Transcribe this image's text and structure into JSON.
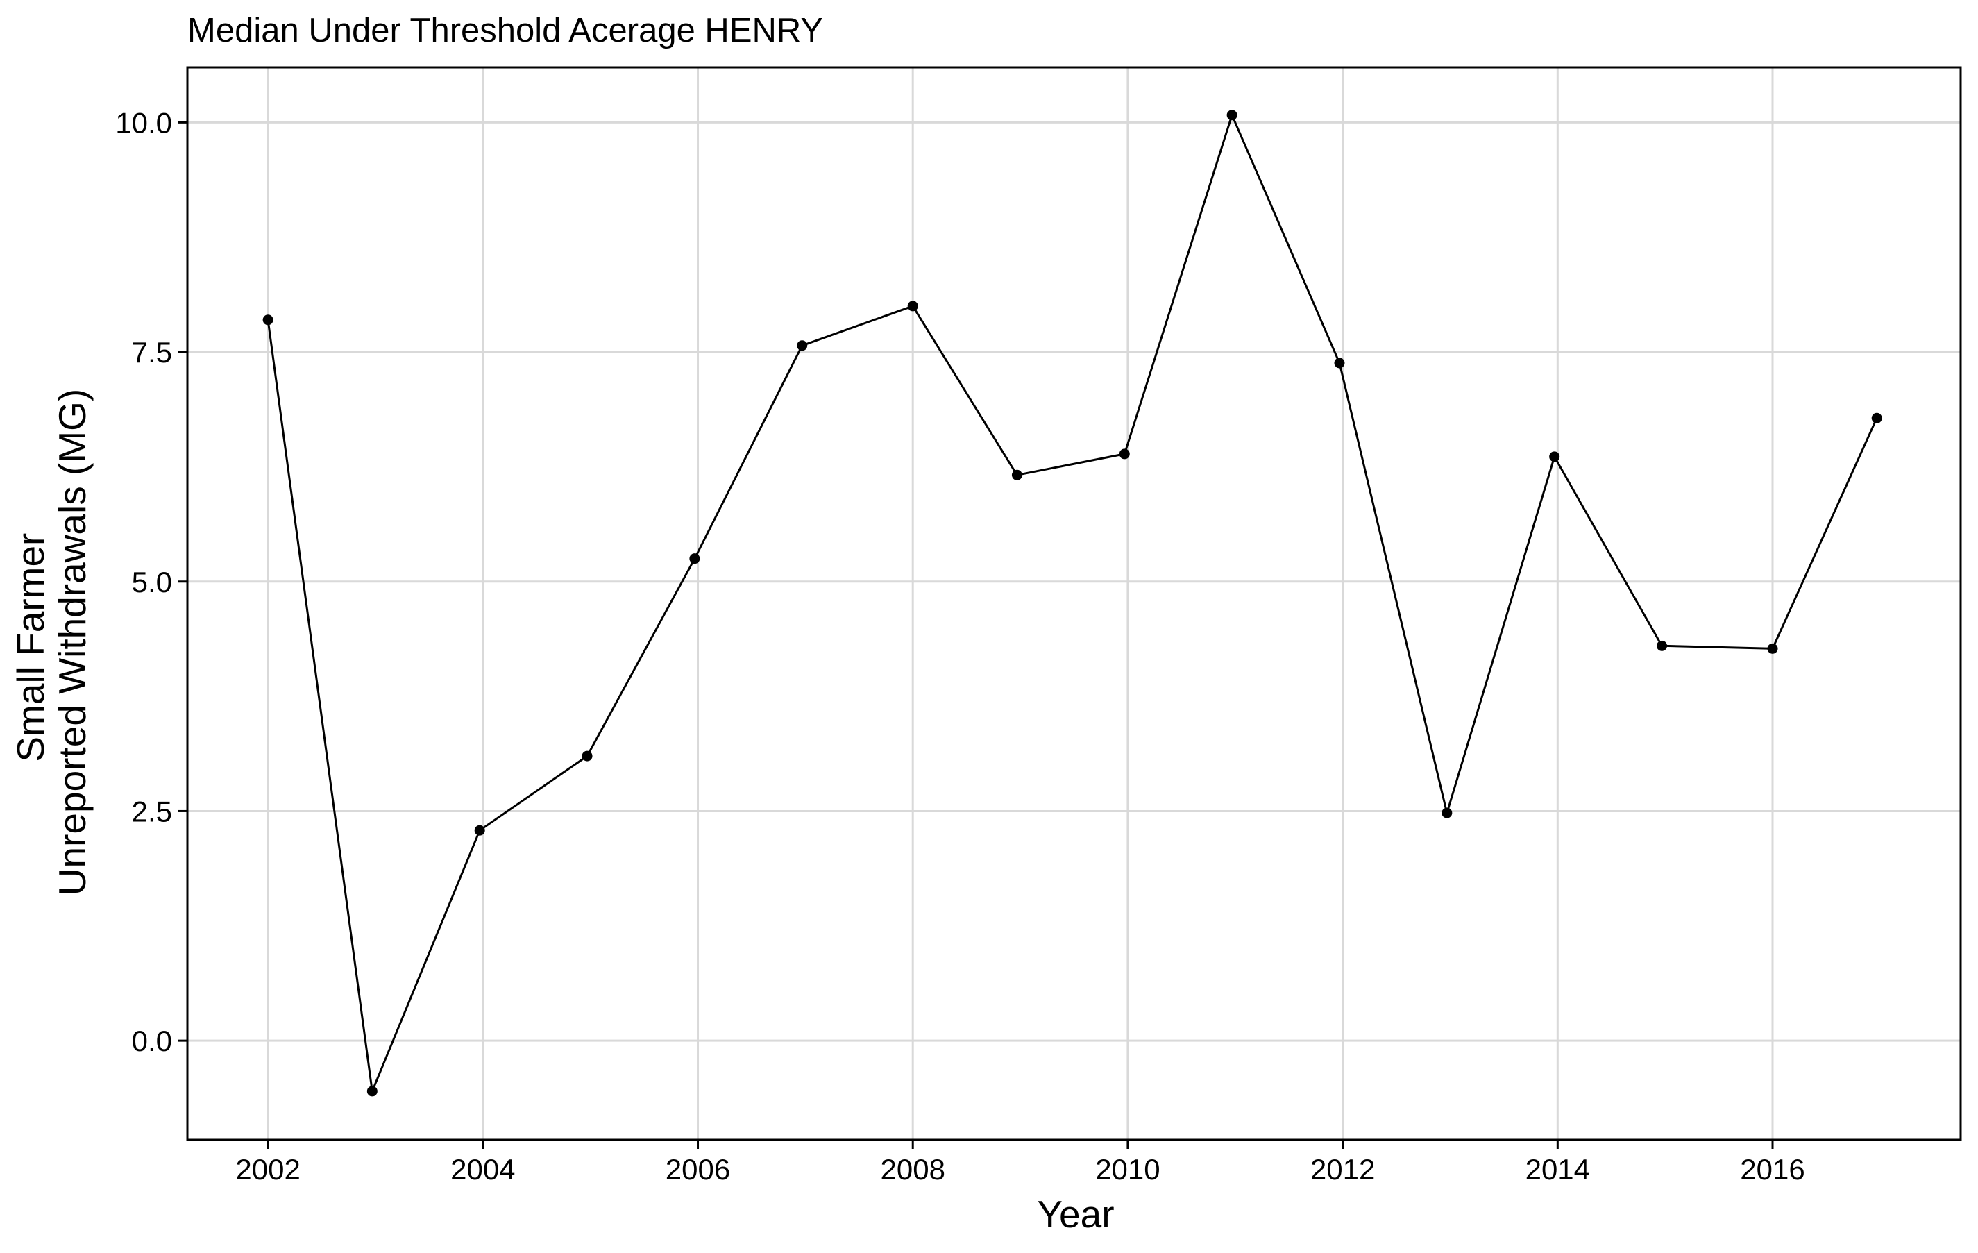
{
  "chart_data": {
    "type": "line",
    "title": "Median Under Threshold Acerage HENRY",
    "xlabel": "Year",
    "ylabel_lines": [
      "Small Farmer",
      "Unreported Withdrawals (MG)"
    ],
    "x_ticks": [
      2002,
      2004,
      2006,
      2008,
      2010,
      2012,
      2014,
      2016
    ],
    "x_tick_labels": [
      "2002",
      "2004",
      "2006",
      "2008",
      "2010",
      "2012",
      "2014",
      "2016"
    ],
    "y_ticks": [
      0.0,
      2.5,
      5.0,
      7.5,
      10.0
    ],
    "y_tick_labels": [
      "0.0",
      "2.5",
      "5.0",
      "7.5",
      "10.0"
    ],
    "xlim": [
      2001.25,
      2017.75
    ],
    "ylim": [
      -1.08,
      10.6
    ],
    "grid": true,
    "legend": "none",
    "series": [
      {
        "color": "#000000",
        "x": [
          2002,
          2002.97,
          2003.97,
          2004.97,
          2005.97,
          2006.97,
          2008,
          2008.97,
          2009.97,
          2010.97,
          2011.97,
          2012.97,
          2013.97,
          2014.97,
          2016,
          2016.97
        ],
        "y": [
          7.85,
          -0.55,
          2.29,
          3.1,
          5.25,
          7.57,
          8.0,
          6.16,
          6.39,
          10.08,
          7.38,
          2.48,
          6.36,
          4.3,
          4.27,
          6.78
        ]
      }
    ]
  }
}
